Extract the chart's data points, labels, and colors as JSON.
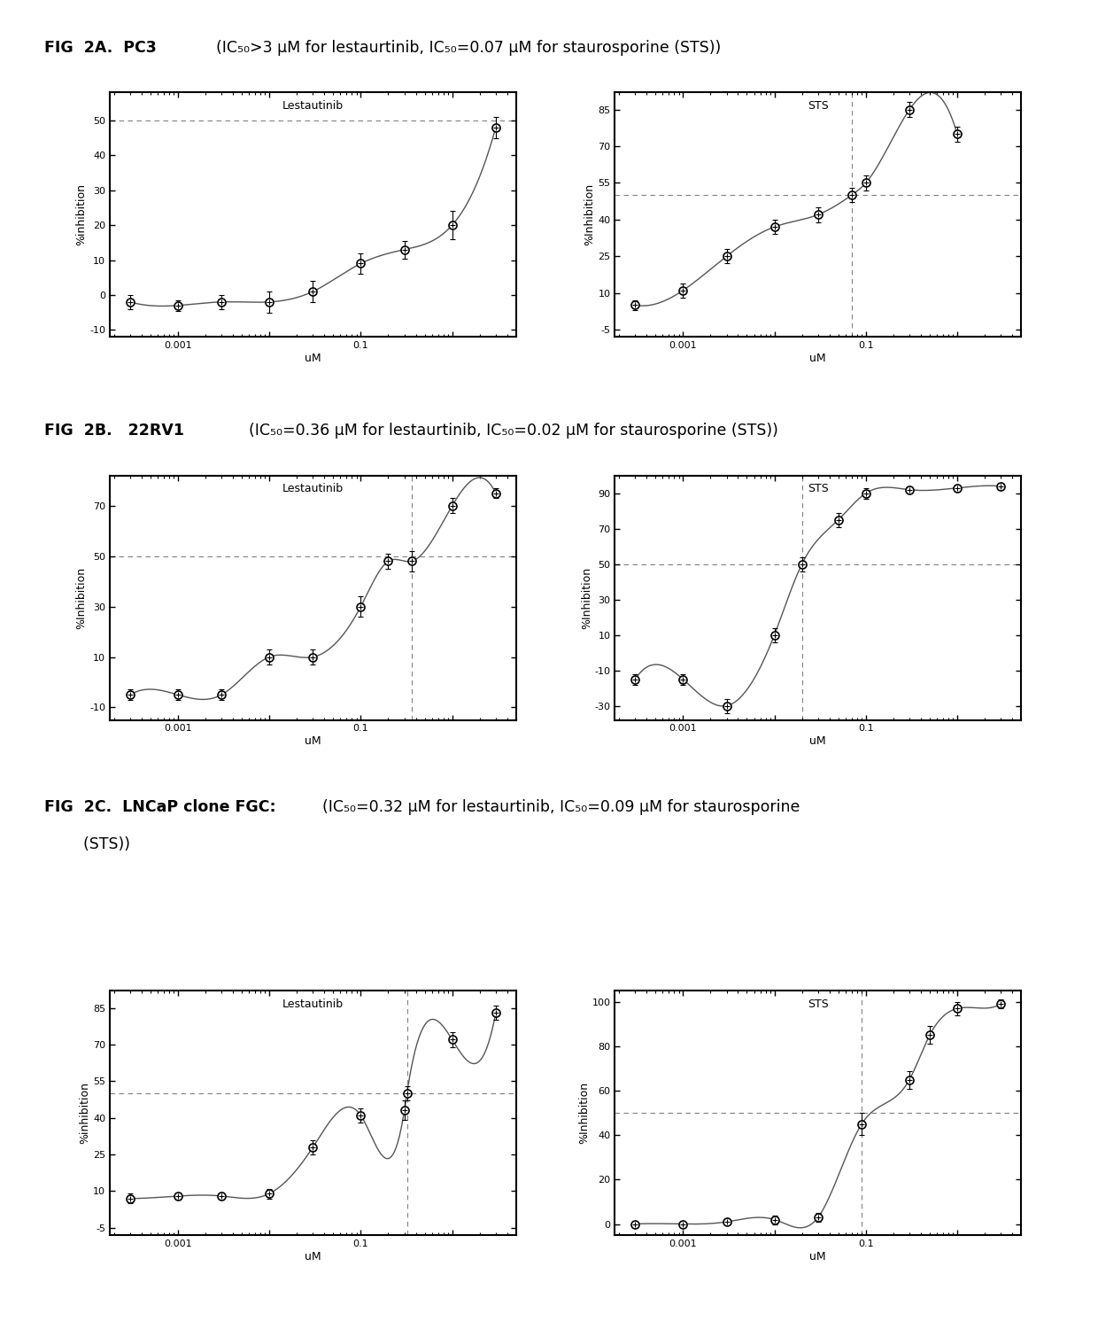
{
  "panel_A_lest": {
    "title": "Lestautinib",
    "xlabel": "uM",
    "ylabel": "%inhibition",
    "x": [
      0.0003,
      0.001,
      0.003,
      0.01,
      0.03,
      0.1,
      0.3,
      1.0,
      3.0
    ],
    "y": [
      -2,
      -3,
      -2,
      -2,
      1,
      9,
      13,
      20,
      48
    ],
    "yerr": [
      2,
      1.5,
      2,
      3,
      3,
      3,
      2.5,
      4,
      3
    ],
    "hline_y": 50,
    "show_vline": false,
    "ic50_vline": 3.5,
    "ylim": [
      -12,
      58
    ],
    "yticks": [
      -10,
      0,
      10,
      20,
      30,
      40,
      50
    ]
  },
  "panel_A_sts": {
    "title": "STS",
    "xlabel": "uM",
    "ylabel": "%Inhibition",
    "x": [
      0.0003,
      0.001,
      0.003,
      0.01,
      0.03,
      0.07,
      0.1,
      0.3,
      1.0
    ],
    "y": [
      5,
      11,
      25,
      37,
      42,
      50,
      55,
      85,
      75
    ],
    "yerr": [
      2,
      3,
      3,
      3,
      3,
      3,
      3,
      3,
      3
    ],
    "hline_y": 50,
    "show_vline": true,
    "ic50_vline": 0.07,
    "ylim": [
      -8,
      92
    ],
    "yticks": [
      -5,
      10,
      25,
      40,
      55,
      70,
      85
    ]
  },
  "panel_B_lest": {
    "title": "Lestautinib",
    "xlabel": "uM",
    "ylabel": "%Inhibition",
    "x": [
      0.0003,
      0.001,
      0.003,
      0.01,
      0.03,
      0.1,
      0.2,
      0.36,
      1.0,
      3.0
    ],
    "y": [
      -5,
      -5,
      -5,
      10,
      10,
      30,
      48,
      48,
      70,
      75
    ],
    "yerr": [
      2,
      2,
      2,
      3,
      3,
      4,
      3,
      4,
      3,
      2
    ],
    "hline_y": 50,
    "show_vline": true,
    "ic50_vline": 0.36,
    "ylim": [
      -15,
      82
    ],
    "yticks": [
      -10,
      10,
      30,
      50,
      70
    ]
  },
  "panel_B_sts": {
    "title": "STS",
    "xlabel": "uM",
    "ylabel": "%Inhibition",
    "x": [
      0.0003,
      0.001,
      0.003,
      0.01,
      0.02,
      0.05,
      0.1,
      0.3,
      1.0,
      3.0
    ],
    "y": [
      -15,
      -15,
      -30,
      10,
      50,
      75,
      90,
      92,
      93,
      94
    ],
    "yerr": [
      3,
      3,
      4,
      4,
      4,
      4,
      3,
      2,
      2,
      2
    ],
    "hline_y": 50,
    "show_vline": true,
    "ic50_vline": 0.02,
    "ylim": [
      -38,
      100
    ],
    "yticks": [
      -30,
      -10,
      10,
      30,
      50,
      70,
      90
    ]
  },
  "panel_C_lest": {
    "title": "Lestautinib",
    "xlabel": "uM",
    "ylabel": "%inhibition",
    "x": [
      0.0003,
      0.001,
      0.003,
      0.01,
      0.03,
      0.1,
      0.3,
      0.32,
      1.0,
      3.0
    ],
    "y": [
      7,
      8,
      8,
      9,
      28,
      41,
      43,
      50,
      72,
      83
    ],
    "yerr": [
      2,
      1.5,
      1.5,
      2,
      3,
      3,
      4,
      3,
      3,
      3
    ],
    "hline_y": 50,
    "show_vline": true,
    "ic50_vline": 0.32,
    "ylim": [
      -8,
      92
    ],
    "yticks": [
      -5,
      10,
      25,
      40,
      55,
      70,
      85
    ]
  },
  "panel_C_sts": {
    "title": "STS",
    "xlabel": "uM",
    "ylabel": "%Inhibition",
    "x": [
      0.0003,
      0.001,
      0.003,
      0.01,
      0.03,
      0.09,
      0.3,
      0.5,
      1.0,
      3.0
    ],
    "y": [
      0,
      0,
      1,
      2,
      3,
      45,
      65,
      85,
      97,
      99
    ],
    "yerr": [
      1,
      1,
      1,
      2,
      2,
      5,
      4,
      4,
      3,
      2
    ],
    "hline_y": 50,
    "show_vline": true,
    "ic50_vline": 0.09,
    "ylim": [
      -5,
      105
    ],
    "yticks": [
      0,
      20,
      40,
      60,
      80,
      100
    ]
  },
  "title_A_bold": "FIG  2A.  PC3",
  "title_A_normal": "  (IC₅₀>3 μM for lestaurtinib, IC₅₀=0.07 μM for staurosporine (STS))",
  "title_B_bold": "FIG  2B.   22RV1",
  "title_B_normal": "  (IC₅₀=0.36 μM for lestaurtinib, IC₅₀=0.02 μM for staurosporine (STS))",
  "title_C_bold": "FIG  2C.  LNCaP clone FGC:",
  "title_C_normal": "  (IC₅₀=0.32 μM for lestaurtinib, IC₅₀=0.09 μM for staurosporine",
  "title_C_normal2": "        (STS))",
  "bg_color": "#ffffff",
  "line_color": "#808080",
  "marker_color": "#000000",
  "dashed_color": "#808080"
}
